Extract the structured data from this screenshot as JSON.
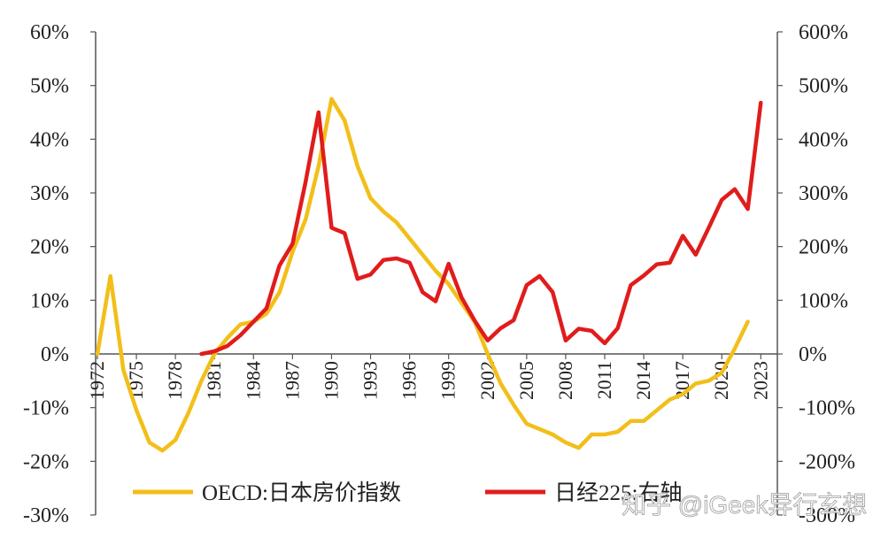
{
  "chart_data": {
    "type": "line",
    "left_axis": {
      "min": -30,
      "max": 60,
      "step": 10,
      "unit": "%"
    },
    "right_axis": {
      "min": -300,
      "max": 600,
      "step": 100,
      "unit": "%"
    },
    "left_ticks": [
      "60%",
      "50%",
      "40%",
      "30%",
      "20%",
      "10%",
      "0%",
      "-10%",
      "-20%",
      "-30%"
    ],
    "right_ticks": [
      "600%",
      "500%",
      "400%",
      "300%",
      "200%",
      "100%",
      "0%",
      "-100%",
      "-200%",
      "-300%"
    ],
    "x_tick_labels": [
      "1972",
      "1975",
      "1978",
      "1981",
      "1984",
      "1987",
      "1990",
      "1993",
      "1996",
      "1999",
      "2002",
      "2005",
      "2008",
      "2011",
      "2014",
      "2017",
      "2020",
      "2023"
    ],
    "series": [
      {
        "name": "OECD:日本房价指数",
        "axis": "left",
        "color": "#f2bf1a",
        "points": [
          [
            1972,
            0
          ],
          [
            1973,
            14.5
          ],
          [
            1974,
            -3
          ],
          [
            1975,
            -10.5
          ],
          [
            1976,
            -16.5
          ],
          [
            1977,
            -18
          ],
          [
            1978,
            -16
          ],
          [
            1979,
            -11
          ],
          [
            1980,
            -5
          ],
          [
            1981,
            0
          ],
          [
            1982,
            3
          ],
          [
            1983,
            5.5
          ],
          [
            1984,
            6
          ],
          [
            1985,
            7.5
          ],
          [
            1986,
            11.5
          ],
          [
            1987,
            19
          ],
          [
            1988,
            25
          ],
          [
            1989,
            35
          ],
          [
            1990,
            47.5
          ],
          [
            1991,
            43.5
          ],
          [
            1992,
            35
          ],
          [
            1993,
            29
          ],
          [
            1994,
            26.5
          ],
          [
            1995,
            24.5
          ],
          [
            1996,
            21.5
          ],
          [
            1997,
            18.5
          ],
          [
            1998,
            15.5
          ],
          [
            1999,
            13
          ],
          [
            2000,
            9.5
          ],
          [
            2001,
            6
          ],
          [
            2002,
            0
          ],
          [
            2003,
            -5.5
          ],
          [
            2004,
            -9.5
          ],
          [
            2005,
            -13
          ],
          [
            2006,
            -14
          ],
          [
            2007,
            -15
          ],
          [
            2008,
            -16.5
          ],
          [
            2009,
            -17.5
          ],
          [
            2010,
            -15
          ],
          [
            2011,
            -15
          ],
          [
            2012,
            -14.5
          ],
          [
            2013,
            -12.5
          ],
          [
            2014,
            -12.5
          ],
          [
            2015,
            -10.5
          ],
          [
            2016,
            -8.5
          ],
          [
            2017,
            -7.5
          ],
          [
            2018,
            -5.5
          ],
          [
            2019,
            -5
          ],
          [
            2020,
            -3.5
          ],
          [
            2021,
            1
          ],
          [
            2022,
            6
          ]
        ]
      },
      {
        "name": "日经225:右轴",
        "axis": "right",
        "color": "#e01c1c",
        "points": [
          [
            1980,
            0
          ],
          [
            1981,
            5
          ],
          [
            1982,
            15
          ],
          [
            1983,
            35
          ],
          [
            1984,
            60
          ],
          [
            1985,
            85
          ],
          [
            1986,
            165
          ],
          [
            1987,
            205
          ],
          [
            1988,
            320
          ],
          [
            1989,
            450
          ],
          [
            1990,
            235
          ],
          [
            1991,
            225
          ],
          [
            1992,
            140
          ],
          [
            1993,
            148
          ],
          [
            1994,
            175
          ],
          [
            1995,
            178
          ],
          [
            1996,
            170
          ],
          [
            1997,
            115
          ],
          [
            1998,
            98
          ],
          [
            1999,
            168
          ],
          [
            2000,
            105
          ],
          [
            2001,
            62
          ],
          [
            2002,
            25
          ],
          [
            2003,
            48
          ],
          [
            2004,
            63
          ],
          [
            2005,
            128
          ],
          [
            2006,
            145
          ],
          [
            2007,
            115
          ],
          [
            2008,
            25
          ],
          [
            2009,
            47
          ],
          [
            2010,
            43
          ],
          [
            2011,
            20
          ],
          [
            2012,
            48
          ],
          [
            2013,
            128
          ],
          [
            2014,
            146
          ],
          [
            2015,
            167
          ],
          [
            2016,
            170
          ],
          [
            2017,
            220
          ],
          [
            2018,
            185
          ],
          [
            2019,
            235
          ],
          [
            2020,
            287
          ],
          [
            2021,
            307
          ],
          [
            2022,
            270
          ],
          [
            2023,
            468
          ]
        ]
      }
    ],
    "legend": [
      {
        "label": "OECD:日本房价指数",
        "color": "#f2bf1a"
      },
      {
        "label": "日经225:右轴",
        "color": "#e01c1c"
      }
    ],
    "legend_position": "bottom",
    "grid": false
  },
  "watermark": "知乎 @iGeek异行玄想"
}
